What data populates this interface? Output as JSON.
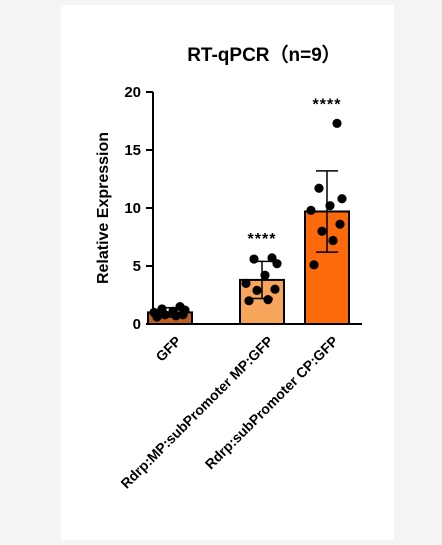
{
  "chart_data": {
    "type": "bar",
    "title": "RT-qPCR（n=9）",
    "xlabel": "",
    "ylabel": "Relative Expression",
    "ylim": [
      0,
      20
    ],
    "yticks": [
      "0",
      "5",
      "10",
      "15",
      "20"
    ],
    "grid": false,
    "categories": [
      "GFP",
      "Rdrp:MP:subPromoter MP:GFP",
      "Rdrp:subPromoter CP:GFP"
    ],
    "values": [
      1.0,
      3.8,
      9.7
    ],
    "error_sd": [
      0.4,
      1.6,
      3.5
    ],
    "significance": [
      "",
      "****",
      "****"
    ],
    "points": [
      [
        0.6,
        0.7,
        0.8,
        0.8,
        1.0,
        1.1,
        1.2,
        1.3,
        1.5
      ],
      [
        2.0,
        2.1,
        2.9,
        3.0,
        3.5,
        4.2,
        5.2,
        5.6,
        5.7
      ],
      [
        5.1,
        7.2,
        8.0,
        8.6,
        9.8,
        10.2,
        10.8,
        11.7,
        17.3
      ]
    ],
    "colors": {
      "bars": [
        "#bd5f1e",
        "#f7a55b",
        "#fc6a0c"
      ],
      "outline": "#000000",
      "points": "#000000",
      "background": "#ffffff",
      "page": "#f4f4f4"
    }
  }
}
